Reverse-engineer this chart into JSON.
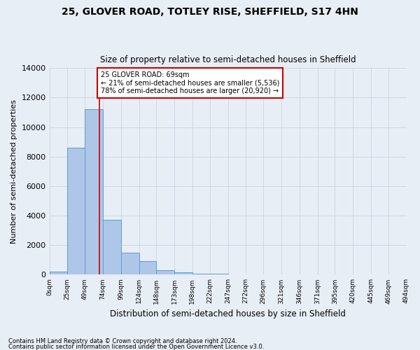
{
  "title1": "25, GLOVER ROAD, TOTLEY RISE, SHEFFIELD, S17 4HN",
  "title2": "Size of property relative to semi-detached houses in Sheffield",
  "xlabel": "Distribution of semi-detached houses by size in Sheffield",
  "ylabel": "Number of semi-detached properties",
  "annotation_line1": "25 GLOVER ROAD: 69sqm",
  "annotation_line2": "← 21% of semi-detached houses are smaller (5,536)",
  "annotation_line3": "78% of semi-detached houses are larger (20,920) →",
  "footnote1": "Contains HM Land Registry data © Crown copyright and database right 2024.",
  "footnote2": "Contains public sector information licensed under the Open Government Licence v3.0.",
  "bin_edges": [
    0,
    25,
    49,
    74,
    99,
    124,
    148,
    173,
    198,
    222,
    247,
    272,
    296,
    321,
    346,
    371,
    395,
    420,
    445,
    469,
    494
  ],
  "bin_widths": [
    25,
    24,
    25,
    25,
    25,
    24,
    25,
    25,
    24,
    25,
    25,
    24,
    25,
    25,
    25,
    24,
    25,
    25,
    24,
    25
  ],
  "bin_labels": [
    "0sqm",
    "25sqm",
    "49sqm",
    "74sqm",
    "99sqm",
    "124sqm",
    "148sqm",
    "173sqm",
    "198sqm",
    "222sqm",
    "247sqm",
    "272sqm",
    "296sqm",
    "321sqm",
    "346sqm",
    "371sqm",
    "395sqm",
    "420sqm",
    "445sqm",
    "469sqm",
    "494sqm"
  ],
  "bar_heights": [
    200,
    8600,
    11200,
    3700,
    1500,
    900,
    300,
    150,
    80,
    50,
    30,
    0,
    0,
    0,
    0,
    0,
    0,
    0,
    0,
    0
  ],
  "bar_color": "#aec6e8",
  "bar_edge_color": "#5a9fd4",
  "grid_color": "#d0d8e4",
  "vline_color": "#cc0000",
  "vline_x": 69,
  "annotation_box_color": "#ffffff",
  "annotation_box_edge": "#cc0000",
  "ylim": [
    0,
    14000
  ],
  "xlim": [
    0,
    494
  ],
  "background_color": "#e8eef6",
  "yticks": [
    0,
    2000,
    4000,
    6000,
    8000,
    10000,
    12000,
    14000
  ]
}
